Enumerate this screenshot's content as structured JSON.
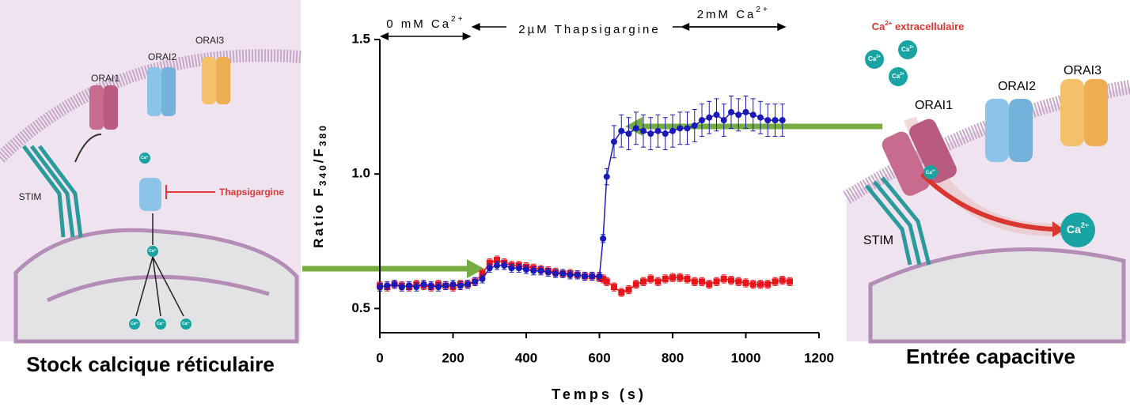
{
  "chart_data": {
    "type": "line",
    "y_label": [
      "Ratio F",
      "340",
      "/F",
      "380"
    ],
    "x_label": "Temps (s)",
    "xlim": [
      0,
      1200
    ],
    "xticks": [
      0,
      200,
      400,
      600,
      800,
      1000,
      1200
    ],
    "ylim": [
      0.41,
      1.5
    ],
    "yticks": [
      0.5,
      {
        "value": 1,
        "label": "1.0"
      },
      1.5
    ],
    "annotations": [
      {
        "text": [
          "0 mM Ca",
          "2+"
        ],
        "x": [
          0,
          250
        ]
      },
      {
        "text": [
          "2µM Thapsigargine"
        ],
        "x": [
          250,
          1110
        ]
      },
      {
        "text": [
          "2mM Ca",
          "2+"
        ],
        "x": [
          822,
          1110
        ]
      }
    ],
    "x": [
      0,
      20,
      40,
      60,
      80,
      100,
      120,
      140,
      160,
      180,
      200,
      220,
      240,
      260,
      280,
      300,
      320,
      340,
      360,
      380,
      400,
      420,
      440,
      460,
      480,
      500,
      520,
      540,
      560,
      580,
      600,
      610,
      620,
      640,
      660,
      680,
      700,
      720,
      740,
      760,
      780,
      800,
      820,
      840,
      860,
      880,
      900,
      920,
      940,
      960,
      980,
      1000,
      1020,
      1040,
      1060,
      1080,
      1100,
      1120
    ],
    "series": [
      {
        "name": "red",
        "color": "#e8141a",
        "marker": "square",
        "values": [
          0.585,
          0.58,
          0.59,
          0.585,
          0.58,
          0.59,
          0.585,
          0.58,
          0.59,
          0.585,
          0.58,
          0.59,
          0.59,
          0.6,
          0.63,
          0.67,
          0.68,
          0.67,
          0.66,
          0.66,
          0.655,
          0.65,
          0.645,
          0.64,
          0.635,
          0.63,
          0.63,
          0.625,
          0.62,
          0.62,
          0.615,
          0.61,
          0.6,
          0.58,
          0.56,
          0.57,
          0.59,
          0.6,
          0.61,
          0.6,
          0.61,
          0.615,
          0.615,
          0.61,
          0.6,
          0.6,
          0.59,
          0.6,
          0.61,
          0.605,
          0.6,
          0.595,
          0.59,
          0.59,
          0.59,
          0.6,
          0.605,
          0.6
        ],
        "errors": [
          0.015,
          0.015,
          0.015,
          0.015,
          0.015,
          0.015,
          0.015,
          0.015,
          0.015,
          0.015,
          0.015,
          0.015,
          0.015,
          0.015,
          0.015,
          0.015,
          0.015,
          0.015,
          0.015,
          0.015,
          0.015,
          0.015,
          0.015,
          0.015,
          0.015,
          0.015,
          0.015,
          0.015,
          0.015,
          0.015,
          0.015,
          0.015,
          0.015,
          0.015,
          0.015,
          0.015,
          0.015,
          0.015,
          0.015,
          0.015,
          0.015,
          0.015,
          0.015,
          0.015,
          0.015,
          0.015,
          0.015,
          0.015,
          0.015,
          0.015,
          0.015,
          0.015,
          0.015,
          0.015,
          0.015,
          0.015,
          0.015,
          0.015
        ]
      },
      {
        "name": "blue",
        "color": "#1a1ab8",
        "marker": "circle",
        "values": [
          0.58,
          0.585,
          0.59,
          0.58,
          0.585,
          0.58,
          0.59,
          0.585,
          0.58,
          0.585,
          0.59,
          0.585,
          0.59,
          0.6,
          0.61,
          0.65,
          0.66,
          0.66,
          0.65,
          0.65,
          0.645,
          0.64,
          0.64,
          0.635,
          0.63,
          0.63,
          0.625,
          0.625,
          0.62,
          0.62,
          0.62,
          0.76,
          0.99,
          1.12,
          1.16,
          1.15,
          1.17,
          1.16,
          1.15,
          1.16,
          1.15,
          1.16,
          1.17,
          1.17,
          1.18,
          1.2,
          1.21,
          1.22,
          1.2,
          1.23,
          1.22,
          1.23,
          1.22,
          1.21,
          1.2,
          1.2,
          1.2,
          null
        ],
        "errors": [
          0.015,
          0.015,
          0.015,
          0.015,
          0.015,
          0.015,
          0.015,
          0.015,
          0.015,
          0.015,
          0.015,
          0.015,
          0.015,
          0.015,
          0.015,
          0.015,
          0.015,
          0.015,
          0.015,
          0.015,
          0.015,
          0.015,
          0.015,
          0.015,
          0.015,
          0.015,
          0.015,
          0.015,
          0.015,
          0.015,
          0.015,
          0.015,
          0.03,
          0.06,
          0.06,
          0.06,
          0.06,
          0.06,
          0.06,
          0.06,
          0.06,
          0.06,
          0.06,
          0.06,
          0.06,
          0.06,
          0.06,
          0.06,
          0.06,
          0.06,
          0.06,
          0.06,
          0.06,
          0.06,
          0.06,
          0.06,
          0.06,
          null
        ]
      }
    ]
  },
  "left_panel": {
    "orai1": "ORAI1",
    "orai2": "ORAI2",
    "orai3": "ORAI3",
    "stim": "STIM",
    "thapsigargine": "Thapsigargine",
    "ion": [
      "Ca",
      "2+"
    ],
    "caption": "Stock calcique réticulaire"
  },
  "right_panel": {
    "extracellular": [
      "Ca",
      "2+",
      " extracellulaire"
    ],
    "orai1": "ORAI1",
    "orai2": "ORAI2",
    "orai3": "ORAI3",
    "stim": "STIM",
    "ion": [
      "Ca",
      "2+"
    ],
    "caption": "Entrée capacitive"
  }
}
